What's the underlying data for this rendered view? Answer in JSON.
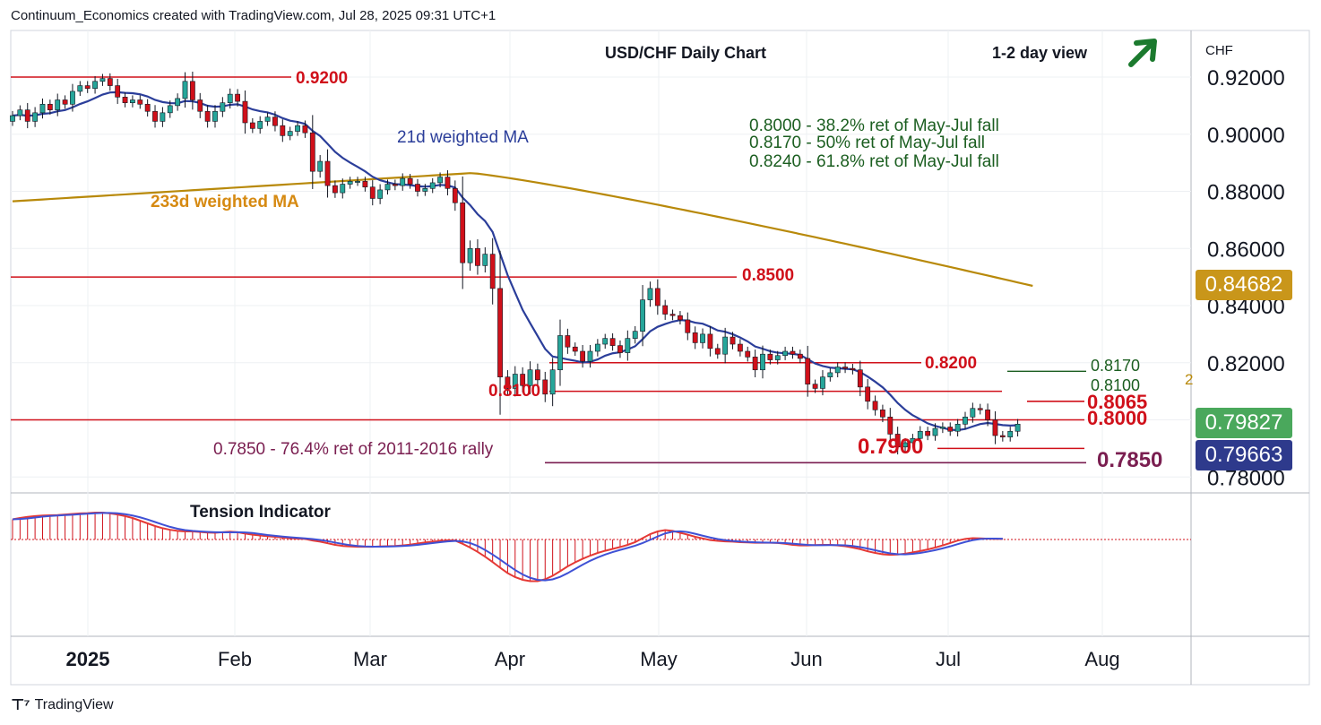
{
  "header": {
    "attribution": "Continuum_Economics created with TradingView.com, Jul 28, 2025 09:31 UTC+1"
  },
  "footer": {
    "brand": "TradingView",
    "logo_icon": "tradingview-logo-icon"
  },
  "chart_data": {
    "type": "candlestick",
    "title": "USD/CHF Daily Chart",
    "view": "1-2 day view",
    "view_icon": "up-right-arrow-icon",
    "view_color": "#1b7a2e",
    "currency": "CHF",
    "y_ticks": [
      "0.92000",
      "0.90000",
      "0.88000",
      "0.86000",
      "0.84000",
      "0.82000",
      "0.80000",
      "0.78000"
    ],
    "x_ticks": [
      "2025",
      "Feb",
      "Mar",
      "Apr",
      "May",
      "Jun",
      "Jul",
      "Aug"
    ],
    "ylim": [
      0.775,
      0.934
    ],
    "price_labels": [
      {
        "value": "0.84682",
        "bg": "#c9961a",
        "fg": "#ffffff"
      },
      {
        "value": "0.79827",
        "bg": "#4aa85c",
        "fg": "#ffffff"
      },
      {
        "value": "0.79663",
        "bg": "#2e3a8c",
        "fg": "#ffffff"
      }
    ],
    "levels": [
      {
        "value": 0.92,
        "label": "0.9200",
        "color": "#d0101a"
      },
      {
        "value": 0.85,
        "label": "0.8500",
        "color": "#d0101a"
      },
      {
        "value": 0.82,
        "label": "0.8200",
        "color": "#d0101a"
      },
      {
        "value": 0.81,
        "label": "0.8100",
        "color": "#d0101a"
      },
      {
        "value": 0.8,
        "label": "0.8000",
        "color": "#d0101a"
      },
      {
        "value": 0.79,
        "label": "0.7900",
        "color": "#d0101a"
      },
      {
        "value": 0.785,
        "label": "0.7850 - 76.4% ret of 2011-2016 rally",
        "color": "#7a1e50"
      }
    ],
    "right_labels": [
      {
        "text": "0.8170",
        "color": "#1b5e20"
      },
      {
        "text": "0.8100",
        "color": "#1b5e20"
      },
      {
        "text": "0.8065",
        "color": "#d0101a"
      },
      {
        "text": "0.8000",
        "color": "#d0101a"
      },
      {
        "text": "0.7900",
        "color": "#d0101a"
      },
      {
        "text": "0.7850",
        "color": "#7a1e50"
      }
    ],
    "notes": [
      "0.8000 - 38.2% ret of May-Jul fall",
      "0.8170 - 50% ret of May-Jul fall",
      "0.8240 - 61.8% ret of May-Jul fall"
    ],
    "ma_labels": {
      "short": "21d weighted MA",
      "long": "233d weighted MA"
    },
    "indicator_label": "Tension Indicator",
    "partial_label": "2",
    "colors": {
      "up": "#26a69a",
      "down": "#d0101a",
      "ma_short": "#2b3e9a",
      "ma_long": "#b8890a"
    },
    "closes": [
      0.9065,
      0.9085,
      0.9045,
      0.9075,
      0.9105,
      0.9085,
      0.912,
      0.9105,
      0.915,
      0.917,
      0.916,
      0.9185,
      0.9195,
      0.917,
      0.913,
      0.911,
      0.912,
      0.9105,
      0.908,
      0.9045,
      0.9075,
      0.91,
      0.9125,
      0.9185,
      0.912,
      0.908,
      0.9045,
      0.908,
      0.911,
      0.914,
      0.9115,
      0.904,
      0.902,
      0.9045,
      0.906,
      0.903,
      0.8995,
      0.901,
      0.903,
      0.9005,
      0.887,
      0.8905,
      0.882,
      0.8795,
      0.8825,
      0.8835,
      0.8835,
      0.8815,
      0.8775,
      0.8805,
      0.8825,
      0.882,
      0.8845,
      0.8825,
      0.88,
      0.881,
      0.883,
      0.885,
      0.881,
      0.876,
      0.855,
      0.86,
      0.854,
      0.858,
      0.846,
      0.815,
      0.811,
      0.816,
      0.812,
      0.8175,
      0.814,
      0.809,
      0.8175,
      0.8295,
      0.8255,
      0.824,
      0.8205,
      0.824,
      0.8265,
      0.8285,
      0.826,
      0.8235,
      0.8285,
      0.831,
      0.842,
      0.846,
      0.84,
      0.837,
      0.8365,
      0.835,
      0.8305,
      0.827,
      0.83,
      0.825,
      0.823,
      0.829,
      0.8265,
      0.824,
      0.822,
      0.8175,
      0.823,
      0.821,
      0.8225,
      0.824,
      0.823,
      0.8215,
      0.8125,
      0.811,
      0.815,
      0.8165,
      0.8185,
      0.818,
      0.8175,
      0.8115,
      0.8065,
      0.8035,
      0.801,
      0.795,
      0.7905,
      0.792,
      0.7935,
      0.796,
      0.7945,
      0.797,
      0.7975,
      0.796,
      0.7985,
      0.801,
      0.804,
      0.8035,
      0.8,
      0.7945,
      0.794,
      0.796,
      0.7985
    ],
    "tension_indicator": [
      0.75,
      0.8,
      0.84,
      0.87,
      0.89,
      0.9,
      0.91,
      0.93,
      0.95,
      0.97,
      0.98,
      1.0,
      1.0,
      0.97,
      0.93,
      0.87,
      0.8,
      0.7,
      0.6,
      0.5,
      0.42,
      0.36,
      0.32,
      0.3,
      0.3,
      0.28,
      0.26,
      0.25,
      0.27,
      0.29,
      0.27,
      0.22,
      0.18,
      0.15,
      0.12,
      0.1,
      0.07,
      0.05,
      0.03,
      0.02,
      -0.04,
      -0.08,
      -0.14,
      -0.2,
      -0.24,
      -0.26,
      -0.27,
      -0.27,
      -0.27,
      -0.26,
      -0.25,
      -0.24,
      -0.22,
      -0.19,
      -0.15,
      -0.11,
      -0.08,
      -0.06,
      -0.03,
      -0.04,
      -0.16,
      -0.3,
      -0.46,
      -0.64,
      -0.84,
      -1.05,
      -1.25,
      -1.4,
      -1.5,
      -1.55,
      -1.55,
      -1.48,
      -1.35,
      -1.18,
      -1.0,
      -0.85,
      -0.72,
      -0.6,
      -0.5,
      -0.42,
      -0.35,
      -0.28,
      -0.2,
      -0.1,
      0.05,
      0.2,
      0.3,
      0.35,
      0.32,
      0.25,
      0.18,
      0.1,
      0.04,
      -0.02,
      -0.05,
      -0.07,
      -0.08,
      -0.1,
      -0.11,
      -0.12,
      -0.12,
      -0.12,
      -0.13,
      -0.16,
      -0.2,
      -0.22,
      -0.22,
      -0.21,
      -0.2,
      -0.2,
      -0.22,
      -0.25,
      -0.3,
      -0.36,
      -0.44,
      -0.5,
      -0.55,
      -0.57,
      -0.56,
      -0.53,
      -0.48,
      -0.43,
      -0.37,
      -0.3,
      -0.22,
      -0.13,
      -0.04,
      0.02,
      0.05,
      0.04,
      0.03,
      0.02,
      0.02
    ]
  }
}
